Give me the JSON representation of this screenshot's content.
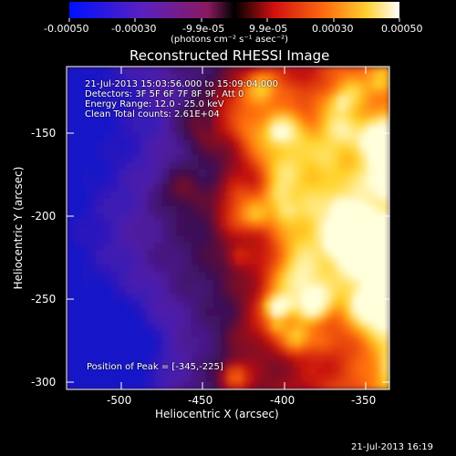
{
  "colorbar": {
    "tick_labels": [
      "-0.00050",
      "-0.00030",
      "-9.9e-05",
      "9.9e-05",
      "0.00030",
      "0.00050"
    ],
    "units_label": "(photons cm⁻² s⁻¹ asec⁻²)"
  },
  "image": {
    "title": "Reconstructed RHESSI Image",
    "time_range": "21-Jul-2013 15:03:56.000 to 15:09:04.000",
    "detectors": "Detectors: 3F 5F 6F 7F 8F 9F, Att 0",
    "energy_range": "Energy Range: 12.0 - 25.0 keV",
    "clean_counts": "Clean     Total counts: 2.61E+04",
    "peak_position": "Position of Peak = [-345,-225]",
    "x_axis": {
      "label": "Heliocentric X (arcsec)",
      "range": [
        -535,
        -335
      ],
      "ticks": [
        "-500",
        "-450",
        "-400",
        "-350"
      ]
    },
    "y_axis": {
      "label": "Heliocentric Y (arcsec)",
      "range": [
        -305,
        -110
      ],
      "ticks": [
        "-150",
        "-200",
        "-250",
        "-300"
      ]
    }
  },
  "footer": {
    "timestamp": "21-Jul-2013 16:19"
  }
}
